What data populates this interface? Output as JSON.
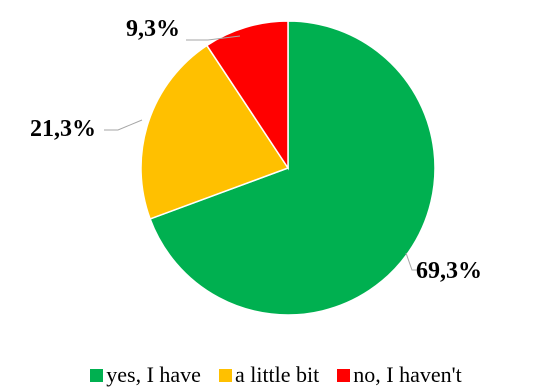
{
  "chart_data": {
    "type": "pie",
    "categories": [
      "yes, I have",
      "a little bit",
      "no, I haven't"
    ],
    "values": [
      69.3,
      21.3,
      9.3
    ],
    "data_labels": [
      "69,3%",
      "21,3%",
      "9,3%"
    ],
    "colors": [
      "#00b050",
      "#ffc000",
      "#ff0000"
    ],
    "legend_position": "bottom",
    "title": "",
    "xlabel": "",
    "ylabel": ""
  }
}
